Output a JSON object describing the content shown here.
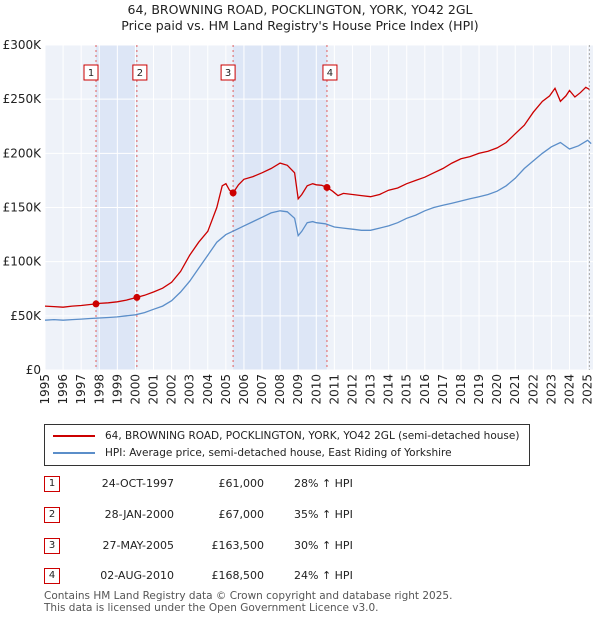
{
  "chart_data": {
    "type": "line",
    "title": "64, BROWNING ROAD, POCKLINGTON, YORK, YO42 2GL",
    "subtitle": "Price paid vs. HM Land Registry's House Price Index (HPI)",
    "ylim": [
      0,
      300000
    ],
    "xlim": [
      1995,
      2025.3
    ],
    "y_ticks": [
      {
        "value": 0,
        "label": "£0"
      },
      {
        "value": 50000,
        "label": "£50K"
      },
      {
        "value": 100000,
        "label": "£100K"
      },
      {
        "value": 150000,
        "label": "£150K"
      },
      {
        "value": 200000,
        "label": "£200K"
      },
      {
        "value": 250000,
        "label": "£250K"
      },
      {
        "value": 300000,
        "label": "£300K"
      }
    ],
    "x_ticks": [
      "1995",
      "1996",
      "1997",
      "1998",
      "1999",
      "2000",
      "2001",
      "2002",
      "2003",
      "2004",
      "2005",
      "2006",
      "2007",
      "2008",
      "2009",
      "2010",
      "2011",
      "2012",
      "2013",
      "2014",
      "2015",
      "2016",
      "2017",
      "2018",
      "2019",
      "2020",
      "2021",
      "2022",
      "2023",
      "2024",
      "2025"
    ],
    "series": [
      {
        "name": "64, BROWNING ROAD, POCKLINGTON, YORK, YO42 2GL (semi-detached house)",
        "color": "#cc0000",
        "x": [
          1995.0,
          1995.5,
          1996.0,
          1996.5,
          1997.0,
          1997.5,
          1997.82,
          1998.0,
          1998.5,
          1999.0,
          1999.5,
          2000.08,
          2000.5,
          2001.0,
          2001.5,
          2002.0,
          2002.5,
          2003.0,
          2003.5,
          2004.0,
          2004.5,
          2004.8,
          2005.0,
          2005.2,
          2005.4,
          2005.7,
          2006.0,
          2006.5,
          2007.0,
          2007.5,
          2008.0,
          2008.4,
          2008.8,
          2009.0,
          2009.2,
          2009.5,
          2009.8,
          2010.0,
          2010.3,
          2010.59,
          2010.9,
          2011.2,
          2011.5,
          2012.0,
          2012.5,
          2013.0,
          2013.5,
          2014.0,
          2014.5,
          2015.0,
          2015.5,
          2016.0,
          2016.5,
          2017.0,
          2017.5,
          2018.0,
          2018.5,
          2019.0,
          2019.5,
          2020.0,
          2020.5,
          2021.0,
          2021.5,
          2022.0,
          2022.5,
          2022.9,
          2023.2,
          2023.5,
          2023.8,
          2024.0,
          2024.3,
          2024.6,
          2024.9,
          2025.1
        ],
        "values": [
          59000,
          58500,
          58000,
          59000,
          59500,
          60500,
          61000,
          61500,
          62000,
          63000,
          64500,
          67000,
          69000,
          72000,
          75500,
          81000,
          91000,
          106000,
          118000,
          128000,
          150000,
          170000,
          172000,
          166000,
          163500,
          171000,
          176000,
          178500,
          182000,
          186000,
          191000,
          189000,
          182000,
          158000,
          162000,
          170000,
          172000,
          171000,
          170500,
          168500,
          165000,
          161000,
          163000,
          162000,
          161000,
          160000,
          162000,
          166000,
          168000,
          172000,
          175000,
          178000,
          182000,
          186000,
          191000,
          195000,
          197000,
          200000,
          202000,
          205000,
          210000,
          218000,
          226000,
          238000,
          248000,
          253000,
          260000,
          248000,
          253000,
          258000,
          252000,
          256000,
          261000,
          259000
        ],
        "sales": [
          {
            "n": "1",
            "x": 1997.82,
            "value": 61000
          },
          {
            "n": "2",
            "x": 2000.08,
            "value": 67000
          },
          {
            "n": "3",
            "x": 2005.4,
            "value": 163500
          },
          {
            "n": "4",
            "x": 2010.59,
            "value": 168500
          }
        ]
      },
      {
        "name": "HPI: Average price, semi-detached house, East Riding of Yorkshire",
        "color": "#5b8ec9",
        "x": [
          1995.0,
          1995.5,
          1996.0,
          1996.5,
          1997.0,
          1997.5,
          1998.0,
          1998.5,
          1999.0,
          1999.5,
          2000.0,
          2000.5,
          2001.0,
          2001.5,
          2002.0,
          2002.5,
          2003.0,
          2003.5,
          2004.0,
          2004.5,
          2005.0,
          2005.5,
          2006.0,
          2006.5,
          2007.0,
          2007.5,
          2008.0,
          2008.4,
          2008.8,
          2009.0,
          2009.2,
          2009.5,
          2009.8,
          2010.0,
          2010.5,
          2011.0,
          2011.5,
          2012.0,
          2012.5,
          2013.0,
          2013.5,
          2014.0,
          2014.5,
          2015.0,
          2015.5,
          2016.0,
          2016.5,
          2017.0,
          2017.5,
          2018.0,
          2018.5,
          2019.0,
          2019.5,
          2020.0,
          2020.5,
          2021.0,
          2021.5,
          2022.0,
          2022.5,
          2023.0,
          2023.5,
          2024.0,
          2024.5,
          2025.0,
          2025.2
        ],
        "values": [
          46000,
          46500,
          46000,
          46500,
          47000,
          47500,
          48000,
          48500,
          49000,
          50000,
          51000,
          53000,
          56000,
          59000,
          64000,
          72000,
          82000,
          94000,
          106000,
          118000,
          125000,
          129000,
          133000,
          137000,
          141000,
          145000,
          147000,
          146000,
          140000,
          124000,
          128000,
          136000,
          137000,
          136000,
          135000,
          132000,
          131000,
          130000,
          129000,
          129000,
          131000,
          133000,
          136000,
          140000,
          143000,
          147000,
          150000,
          152000,
          154000,
          156000,
          158000,
          160000,
          162000,
          165000,
          170000,
          177000,
          186000,
          193000,
          200000,
          206000,
          210000,
          204000,
          207000,
          212000,
          209000
        ]
      }
    ],
    "shaded_ranges": [
      [
        1997.82,
        2000.08
      ],
      [
        2005.4,
        2010.59
      ]
    ]
  },
  "table": [
    {
      "n": "1",
      "date": "24-OCT-1997",
      "price": "£61,000",
      "hpi": "28% ↑ HPI"
    },
    {
      "n": "2",
      "date": "28-JAN-2000",
      "price": "£67,000",
      "hpi": "35% ↑ HPI"
    },
    {
      "n": "3",
      "date": "27-MAY-2005",
      "price": "£163,500",
      "hpi": "30% ↑ HPI"
    },
    {
      "n": "4",
      "date": "02-AUG-2010",
      "price": "£168,500",
      "hpi": "24% ↑ HPI"
    }
  ],
  "footer": {
    "line1": "Contains HM Land Registry data © Crown copyright and database right 2025.",
    "line2": "This data is licensed under the Open Government Licence v3.0."
  }
}
